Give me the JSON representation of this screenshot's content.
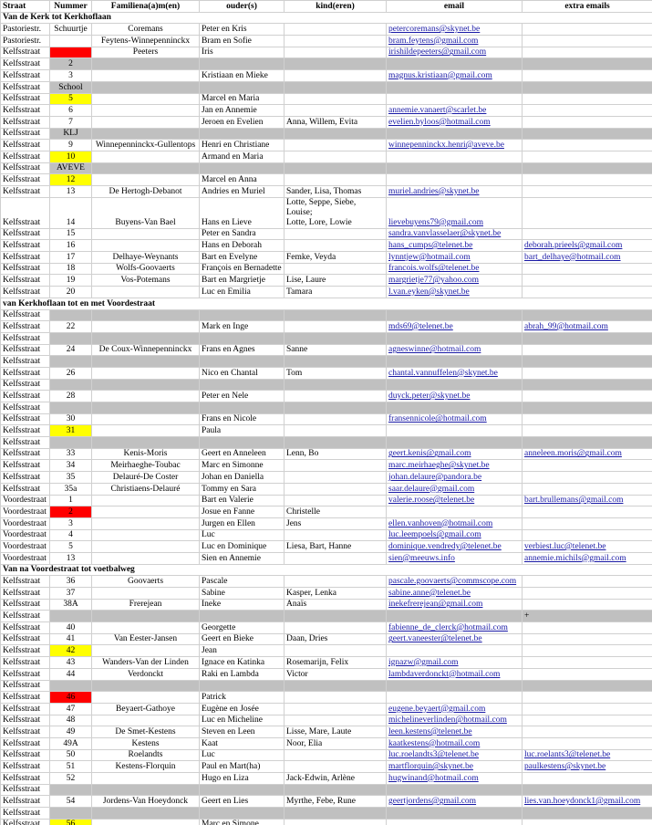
{
  "table": {
    "header": [
      "Straat",
      "Nummer",
      "Familiena(a)m(en)",
      "ouder(s)",
      "kind(eren)",
      "email",
      "extra emails"
    ],
    "band_color": "#c0c0c0",
    "rows": [
      {
        "section": "Van de Kerk tot Kerkhoflaan"
      },
      {
        "straat": "Pastoriestr.",
        "nummer": "Schuurtje",
        "familie": "Coremans",
        "ouders": "Peter en Kris",
        "email": "petercoremans@skynet.be"
      },
      {
        "straat": "Pastoriestr.",
        "familie": "Feytens-Winnepenninckx",
        "ouders": "Bram en Sofie",
        "email": "bram.feytens@gmail.com"
      },
      {
        "straat": "Kelfsstraat",
        "number_color": "#ff0000",
        "familie": "Peeters",
        "ouders": "Iris",
        "email": "irishildepeeters@gmail.com"
      },
      {
        "straat": "Kelfsstraat",
        "nummer": "2",
        "band": true
      },
      {
        "straat": "Kelfsstraat",
        "nummer": "3",
        "ouders": "Kristiaan en Mieke",
        "email": "magnus.kristiaan@gmail.com"
      },
      {
        "straat": "Kelfsstraat",
        "nummer": "School",
        "band": true
      },
      {
        "straat": "Kelfsstraat",
        "nummer": "5",
        "number_color": "#ffff00",
        "ouders": "Marcel en Maria"
      },
      {
        "straat": "Kelfsstraat",
        "nummer": "6",
        "ouders": "Jan en Annemie",
        "email": "annemie.vanaert@scarlet.be"
      },
      {
        "straat": "Kelfsstraat",
        "nummer": "7",
        "ouders": "Jeroen en Evelien",
        "kinderen": "Anna, Willem, Evita",
        "email": "evelien.byloos@hotmail.com"
      },
      {
        "straat": "Kelfsstraat",
        "nummer": "KLJ",
        "band": true
      },
      {
        "straat": "Kelfsstraat",
        "nummer": "9",
        "familie": "Winnepenninckx-Gullentops",
        "ouders": "Henri en Christiane",
        "email": "winnepenninckx.henri@aveve.be"
      },
      {
        "straat": "Kelfsstraat",
        "nummer": "10",
        "number_color": "#ffff00",
        "ouders": "Armand en Maria"
      },
      {
        "straat": "Kelfsstraat",
        "nummer": "AVEVE",
        "band": true
      },
      {
        "straat": "Kelfsstraat",
        "nummer": "12",
        "number_color": "#ffff00",
        "ouders": "Marcel en Anna"
      },
      {
        "straat": "Kelfsstraat",
        "nummer": "13",
        "familie": "De Hertogh-Debanot",
        "ouders": "Andries en Muriel",
        "kinderen": "Sander, Lisa, Thomas",
        "email": "muriel.andries@skynet.be"
      },
      {
        "straat": "Kelfsstraat",
        "nummer": "14",
        "familie": "Buyens-Van Bael",
        "ouders": "Hans en Lieve",
        "kinderen": "Lotte, Seppe, Siebe, Louise;\nLotte, Lore, Lowie",
        "email": "lievebuyens79@gmail.com"
      },
      {
        "straat": "Kelfsstraat",
        "nummer": "15",
        "ouders": "Peter en Sandra",
        "email": "sandra.vanvlasselaer@skynet.be"
      },
      {
        "straat": "Kelfsstraat",
        "nummer": "16",
        "ouders": "Hans en Deborah",
        "email": "hans_cumps@telenet.be",
        "extra": "deborah.prieels@gmail.com"
      },
      {
        "straat": "Kelfsstraat",
        "nummer": "17",
        "familie": "Delhaye-Weynants",
        "ouders": "Bart en Evelyne",
        "kinderen": "Femke, Veyda",
        "email": "lynntjew@hotmail.com",
        "extra": "bart_delhaye@hotmail.com"
      },
      {
        "straat": "Kelfsstraat",
        "nummer": "18",
        "familie": "Wolfs-Goovaerts",
        "ouders": "François en Bernadette",
        "email": "francois.wolfs@telenet.be"
      },
      {
        "straat": "Kelfsstraat",
        "nummer": "19",
        "familie": "Vos-Potemans",
        "ouders": "Bart en Margrietje",
        "kinderen": "Lise, Laure",
        "email": "margrietje77@yahoo.com"
      },
      {
        "straat": "Kelfsstraat",
        "nummer": "20",
        "ouders": "Luc en Emilia",
        "kinderen": "Tamara",
        "email": "l.van.eyken@skynet.be"
      },
      {
        "section": "van Kerkhoflaan tot en met Voordestraat"
      },
      {
        "straat": "Kelfsstraat",
        "band": true
      },
      {
        "straat": "Kelfsstraat",
        "nummer": "22",
        "ouders": "Mark en Inge",
        "email": "mds69@telenet.be",
        "extra": "abrah_99@hotmail.com"
      },
      {
        "straat": "Kelfsstraat",
        "band": true
      },
      {
        "straat": "Kelfsstraat",
        "nummer": "24",
        "familie": "De Coux-Winnepenninckx",
        "ouders": "Frans en Agnes",
        "kinderen": "Sanne",
        "email": "agneswinne@hotmail.com"
      },
      {
        "straat": "Kelfsstraat",
        "band": true
      },
      {
        "straat": "Kelfsstraat",
        "nummer": "26",
        "ouders": "Nico en Chantal",
        "kinderen": "Tom",
        "email": "chantal.vannuffelen@skynet.be"
      },
      {
        "straat": "Kelfsstraat",
        "band": true
      },
      {
        "straat": "Kelfsstraat",
        "nummer": "28",
        "ouders": "Peter en Nele",
        "email": "duyck.peter@skynet.be"
      },
      {
        "straat": "Kelfsstraat",
        "band": true
      },
      {
        "straat": "Kelfsstraat",
        "nummer": "30",
        "ouders": "Frans en Nicole",
        "email": "fransennicole@hotmail.com"
      },
      {
        "straat": "Kelfsstraat",
        "nummer": "31",
        "number_color": "#ffff00",
        "ouders": "Paula"
      },
      {
        "straat": "Kelfsstraat",
        "band": true
      },
      {
        "straat": "Kelfsstraat",
        "nummer": "33",
        "familie": "Kenis-Moris",
        "ouders": "Geert en Anneleen",
        "kinderen": "Lenn, Bo",
        "email": "geert.kenis@gmail.com",
        "extra": "anneleen.moris@gmail.com"
      },
      {
        "straat": "Kelfsstraat",
        "nummer": "34",
        "familie": "Meirhaeghe-Toubac",
        "ouders": "Marc en Simonne",
        "email": "marc.meirhaeghe@skynet.be"
      },
      {
        "straat": "Kelfsstraat",
        "nummer": "35",
        "familie": "Delauré-De Coster",
        "ouders": "Johan en Daniella",
        "email": "johan.delaure@pandora.be"
      },
      {
        "straat": "Kelfsstraat",
        "nummer": "35a",
        "familie": "Christiaens-Delauré",
        "ouders": "Tommy en Sara",
        "email": "saar.delaure@gmail.com"
      },
      {
        "straat": "Voordestraat",
        "nummer": "1",
        "ouders": "Bart en Valerie",
        "email": "valerie.roose@telenet.be",
        "extra": "bart.brullemans@gmail.com"
      },
      {
        "straat": "Voordestraat",
        "nummer": "2",
        "number_color": "#ff0000",
        "ouders": "Josue en Fanne",
        "kinderen": "Christelle"
      },
      {
        "straat": "Voordestraat",
        "nummer": "3",
        "ouders": "Jurgen en Ellen",
        "kinderen": "Jens",
        "email": "ellen.vanhoven@hotmail.com"
      },
      {
        "straat": "Voordestraat",
        "nummer": "4",
        "ouders": "Luc",
        "email": "luc.leempoels@gmail.com"
      },
      {
        "straat": "Voordestraat",
        "nummer": "5",
        "ouders": "Luc en Dominique",
        "kinderen": "Liesa, Bart, Hanne",
        "email": "dominique.vendredy@telenet.be",
        "extra": "verbiest.luc@telenet.be"
      },
      {
        "straat": "Voordestraat",
        "nummer": "13",
        "ouders": "Sien en Annemie",
        "email": "sien@meeuws.info",
        "extra": "annemie.michils@gmail.com"
      },
      {
        "section": "Van na Voordestraat tot voetbalweg"
      },
      {
        "straat": "Kelfsstraat",
        "nummer": "36",
        "familie": "Goovaerts",
        "ouders": "Pascale",
        "email": "pascale.goovaerts@commscope.com"
      },
      {
        "straat": "Kelfsstraat",
        "nummer": "37",
        "ouders": "Sabine",
        "kinderen": "Kasper, Lenka",
        "email": "sabine.anne@telenet.be"
      },
      {
        "straat": "Kelfsstraat",
        "nummer": "38A",
        "familie": "Frerejean",
        "ouders": "Ineke",
        "kinderen": "Anaïs",
        "email": "inekefrerejean@gmail.com"
      },
      {
        "straat": "Kelfsstraat",
        "band": true,
        "extra": "+"
      },
      {
        "straat": "Kelfsstraat",
        "nummer": "40",
        "ouders": "Georgette",
        "email": "fabienne_de_clerck@hotmail.com"
      },
      {
        "straat": "Kelfsstraat",
        "nummer": "41",
        "familie": "Van Eester-Jansen",
        "ouders": "Geert en Bieke",
        "kinderen": "Daan, Dries",
        "email": "geert.vaneester@telenet.be"
      },
      {
        "straat": "Kelfsstraat",
        "nummer": "42",
        "number_color": "#ffff00",
        "ouders": "Jean"
      },
      {
        "straat": "Kelfsstraat",
        "nummer": "43",
        "familie": "Wanders-Van der Linden",
        "ouders": "Ignace en Katinka",
        "kinderen": "Rosemarijn, Felix",
        "email": "ignazw@gmail.com"
      },
      {
        "straat": "Kelfsstraat",
        "nummer": "44",
        "familie": "Verdonckt",
        "ouders": "Raki en Lambda",
        "kinderen": "Victor",
        "email": "lambdaverdonckt@hotmail.com"
      },
      {
        "straat": "Kelfsstraat",
        "band": true
      },
      {
        "straat": "Kelfsstraat",
        "nummer": "46",
        "number_color": "#ff0000",
        "ouders": "Patrick"
      },
      {
        "straat": "Kelfsstraat",
        "nummer": "47",
        "familie": "Beyaert-Gathoye",
        "ouders": "Eugène en Josée",
        "email": "eugene.beyaert@gmail.com"
      },
      {
        "straat": "Kelfsstraat",
        "nummer": "48",
        "ouders": "Luc en Micheline",
        "email": "michelineverlinden@hotmail.com"
      },
      {
        "straat": "Kelfsstraat",
        "nummer": "49",
        "familie": "De Smet-Kestens",
        "ouders": "Steven en Leen",
        "kinderen": "Lisse, Mare, Laute",
        "email": "leen.kestens@telenet.be"
      },
      {
        "straat": "Kelfsstraat",
        "nummer": "49A",
        "familie": "Kestens",
        "ouders": "Kaat",
        "kinderen": "Noor, Elia",
        "email": "kaatkestens@hotmail.com"
      },
      {
        "straat": "Kelfsstraat",
        "nummer": "50",
        "familie": "Roelandts",
        "ouders": "Luc",
        "email": "luc.roelandts3@telenet.be",
        "extra": "luc.roelants3@telenet.be"
      },
      {
        "straat": "Kelfsstraat",
        "nummer": "51",
        "familie": "Kestens-Florquin",
        "ouders": "Paul en Mart(ha)",
        "email": "martflorquin@skynet.be",
        "extra": "paulkestens@skynet.be"
      },
      {
        "straat": "Kelfsstraat",
        "nummer": "52",
        "ouders": "Hugo en Liza",
        "kinderen": "Jack-Edwin, Arlène",
        "email": "hugwinand@hotmail.com"
      },
      {
        "straat": "Kelfsstraat",
        "band": true
      },
      {
        "straat": "Kelfsstraat",
        "nummer": "54",
        "familie": "Jordens-Van Hoeydonck",
        "ouders": "Geert en Lies",
        "kinderen": "Myrthe, Febe, Rune",
        "email": "geertjordens@gmail.com",
        "extra": "lies.van.hoeydonck1@gmail.com"
      },
      {
        "straat": "Kelfsstraat",
        "band": true
      },
      {
        "straat": "Kelfsstraat",
        "nummer": "56",
        "number_color": "#ffff00",
        "ouders": "Marc en Simone"
      }
    ]
  }
}
